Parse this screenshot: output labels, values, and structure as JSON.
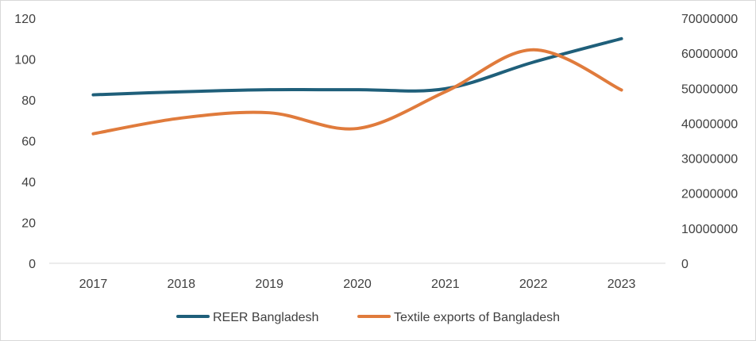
{
  "chart_data": {
    "type": "line",
    "categories": [
      "2017",
      "2018",
      "2019",
      "2020",
      "2021",
      "2022",
      "2023"
    ],
    "series": [
      {
        "name": "REER Bangladesh",
        "axis": "left",
        "color": "#1f5f7a",
        "values": [
          82.5,
          84,
          85,
          85,
          85.5,
          98.5,
          110
        ]
      },
      {
        "name": "Textile exports of Bangladesh",
        "axis": "right",
        "color": "#e07b3c",
        "values": [
          37000000,
          41500000,
          43000000,
          38500000,
          49000000,
          61000000,
          49500000
        ]
      }
    ],
    "y_left": {
      "min": 0,
      "max": 120,
      "ticks": [
        "0",
        "20",
        "40",
        "60",
        "80",
        "100",
        "120"
      ]
    },
    "y_right": {
      "min": 0,
      "max": 70000000,
      "ticks": [
        "0",
        "10000000",
        "20000000",
        "30000000",
        "40000000",
        "50000000",
        "60000000",
        "70000000"
      ]
    },
    "grid": false,
    "legend_position": "bottom",
    "smooth": true
  }
}
